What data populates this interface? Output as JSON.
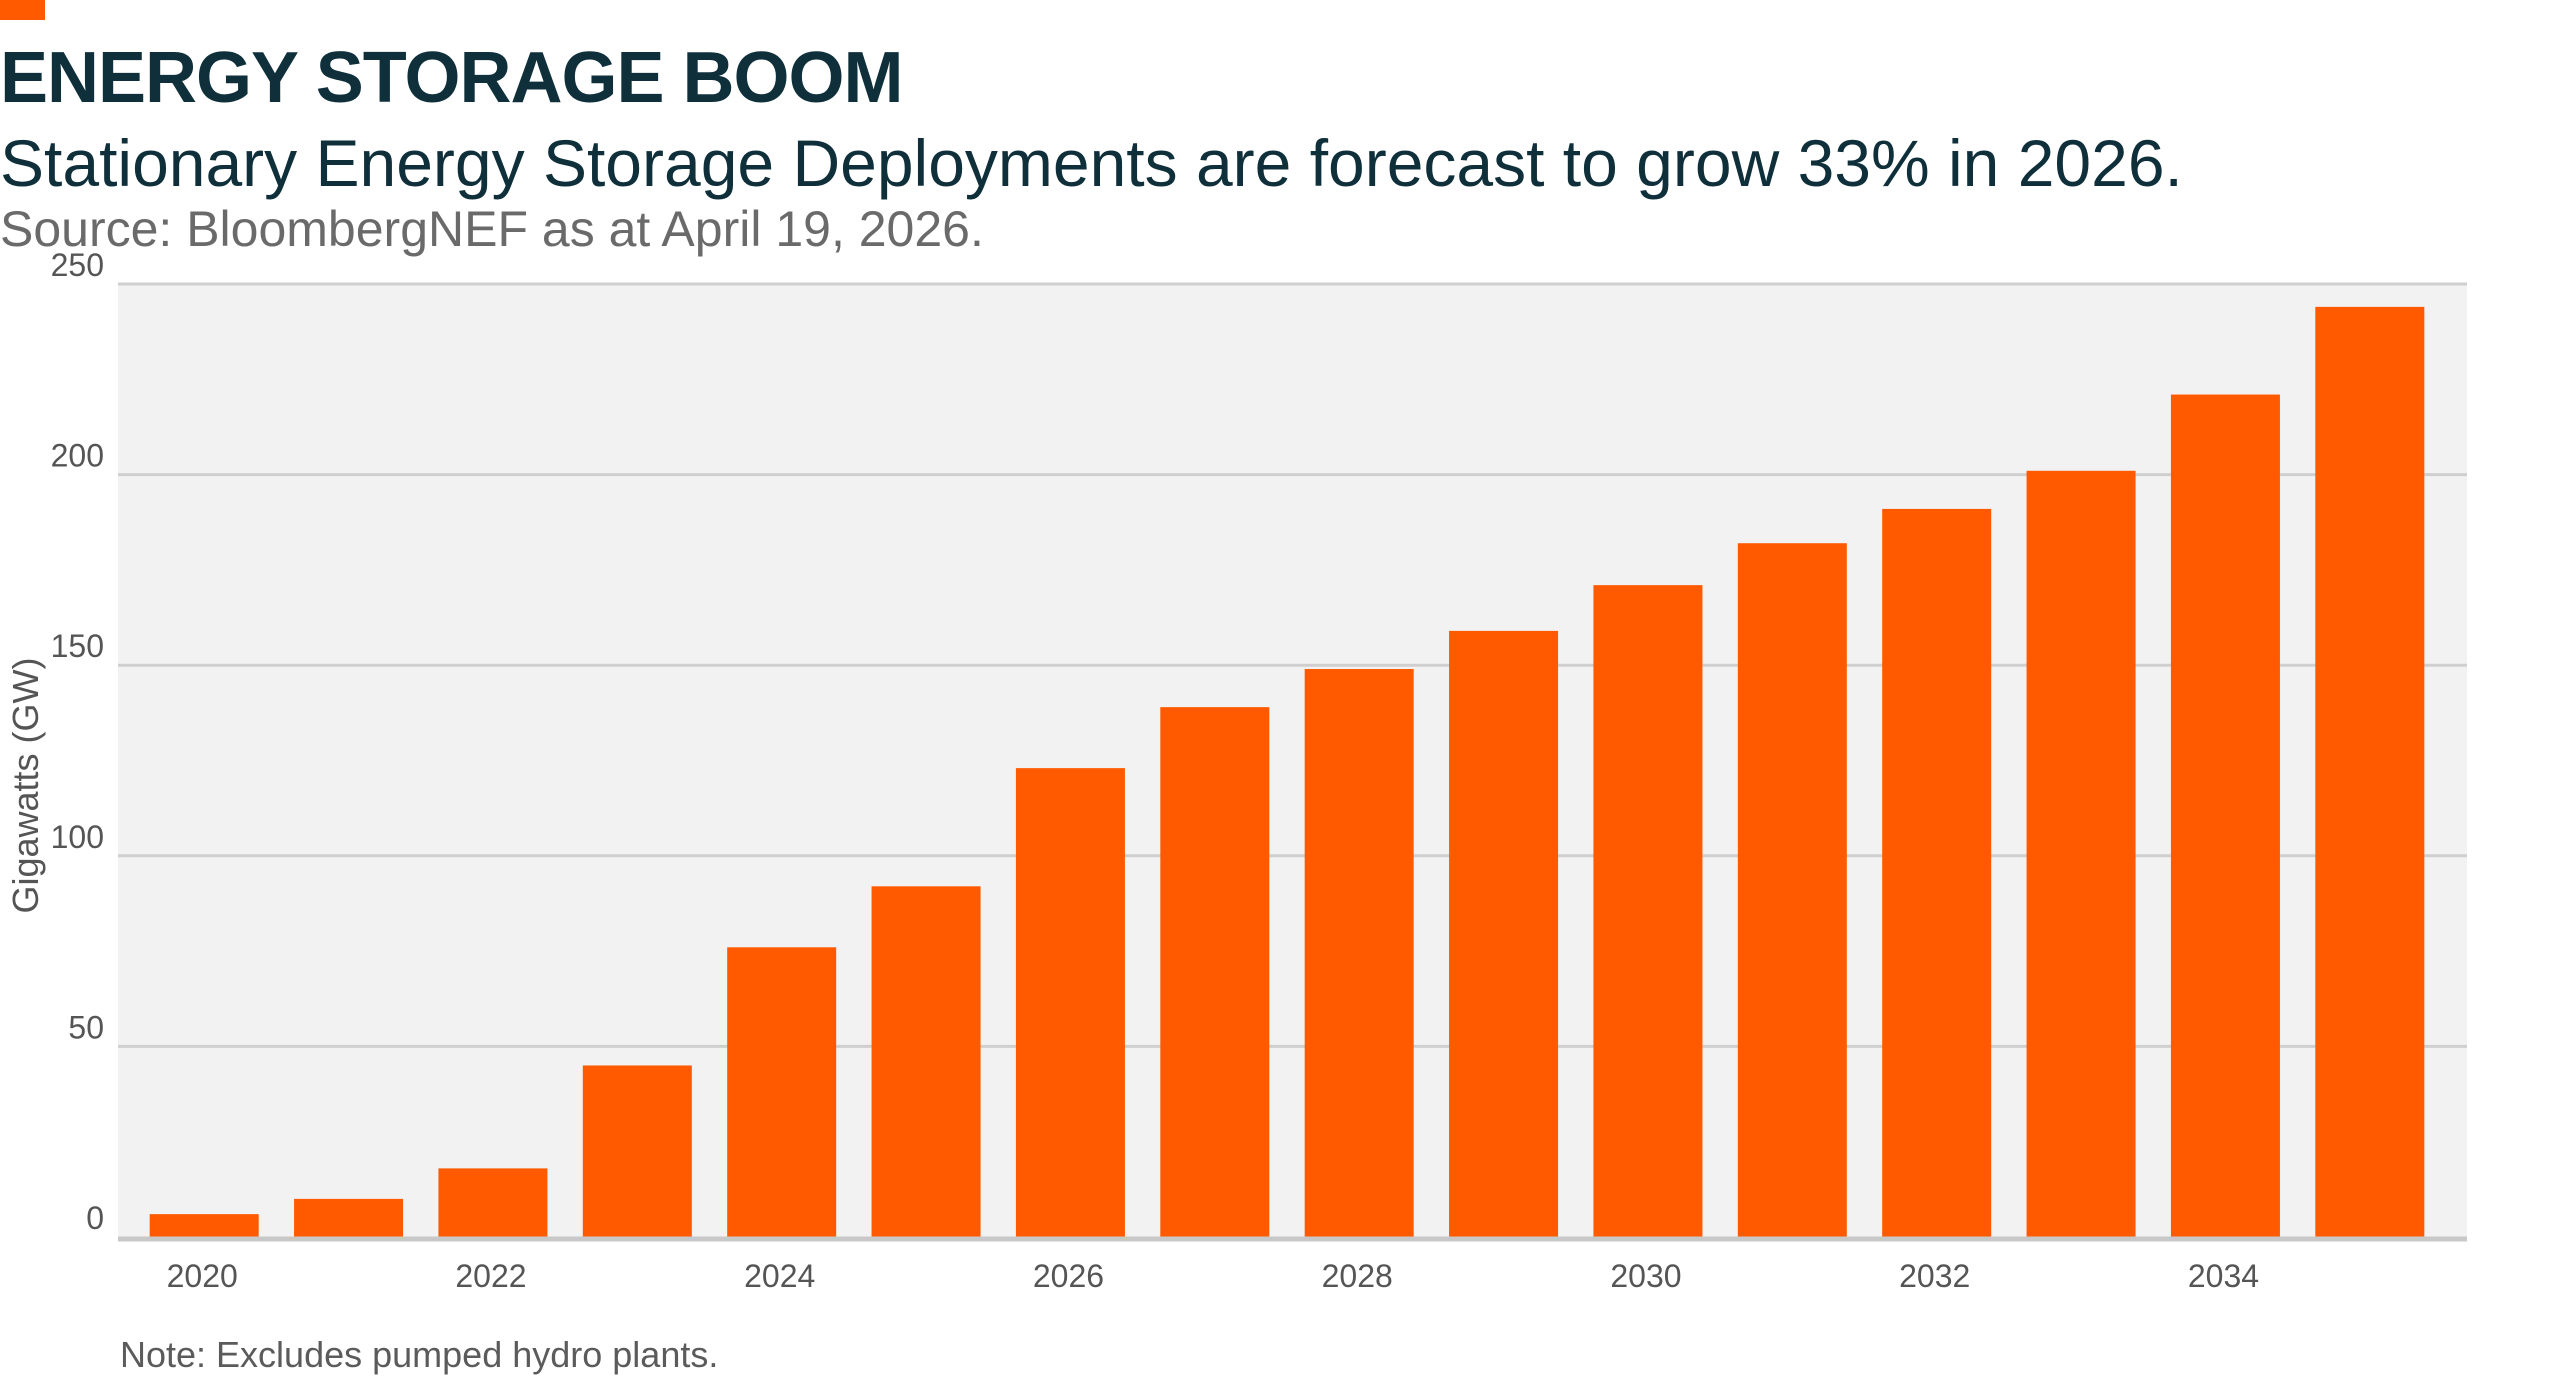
{
  "title": "ENERGY STORAGE BOOM",
  "subtitle": "Stationary Energy Storage Deployments are forecast to grow 33% in 2026.",
  "source": "Source: BloombergNEF as at April 19, 2026.",
  "note": "Note: Excludes pumped hydro plants.",
  "colors": {
    "accent": "#ff5a00",
    "bar": "#ff5a00",
    "plot_background": "#f2f2f2",
    "gridline": "#cfcfcf",
    "title_text": "#0f2f3a"
  },
  "chart_data": {
    "type": "bar",
    "title": "",
    "xlabel": "",
    "ylabel": "Gigawatts (GW)",
    "categories": [
      "2020",
      "2021",
      "2022",
      "2023",
      "2024",
      "2025",
      "2026",
      "2027",
      "2028",
      "2029",
      "2030",
      "2031",
      "2032",
      "2033",
      "2034",
      "2035"
    ],
    "x_tick_labels": [
      "2020",
      "2022",
      "2024",
      "2026",
      "2028",
      "2030",
      "2032",
      "2034"
    ],
    "values": [
      6,
      10,
      18,
      45,
      76,
      92,
      123,
      139,
      149,
      159,
      171,
      182,
      191,
      201,
      221,
      244
    ],
    "ylim": [
      0,
      250
    ],
    "y_ticks": [
      0,
      50,
      100,
      150,
      200,
      250
    ],
    "grid": true,
    "legend": "none"
  }
}
